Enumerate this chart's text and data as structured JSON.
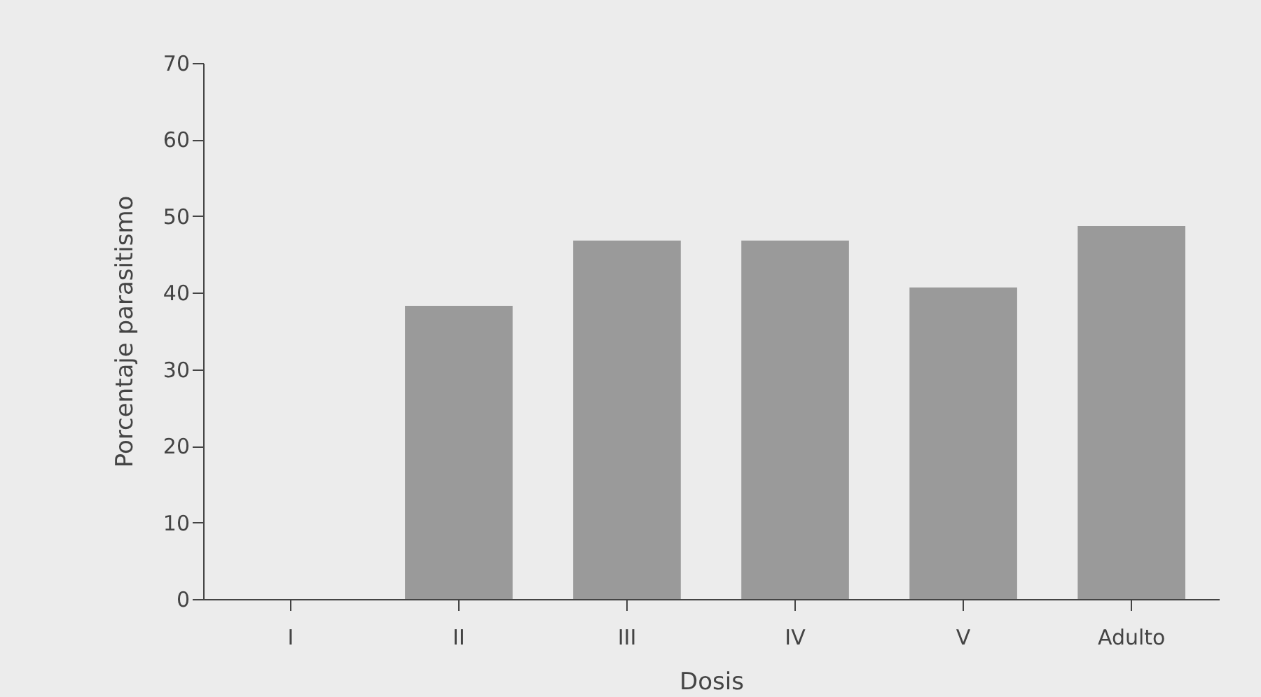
{
  "chart_data": {
    "type": "bar",
    "xlabel": "Dosis",
    "ylabel": "Porcentaje parasitismo",
    "categories": [
      "I",
      "II",
      "III",
      "IV",
      "V",
      "Adulto"
    ],
    "values": [
      0,
      38.3,
      46.8,
      46.8,
      40.7,
      48.7
    ],
    "color": "#9a9a9a",
    "ylim": [
      0,
      70
    ],
    "yticks": [
      0,
      10,
      20,
      30,
      40,
      50,
      60,
      70
    ],
    "grid": false
  }
}
